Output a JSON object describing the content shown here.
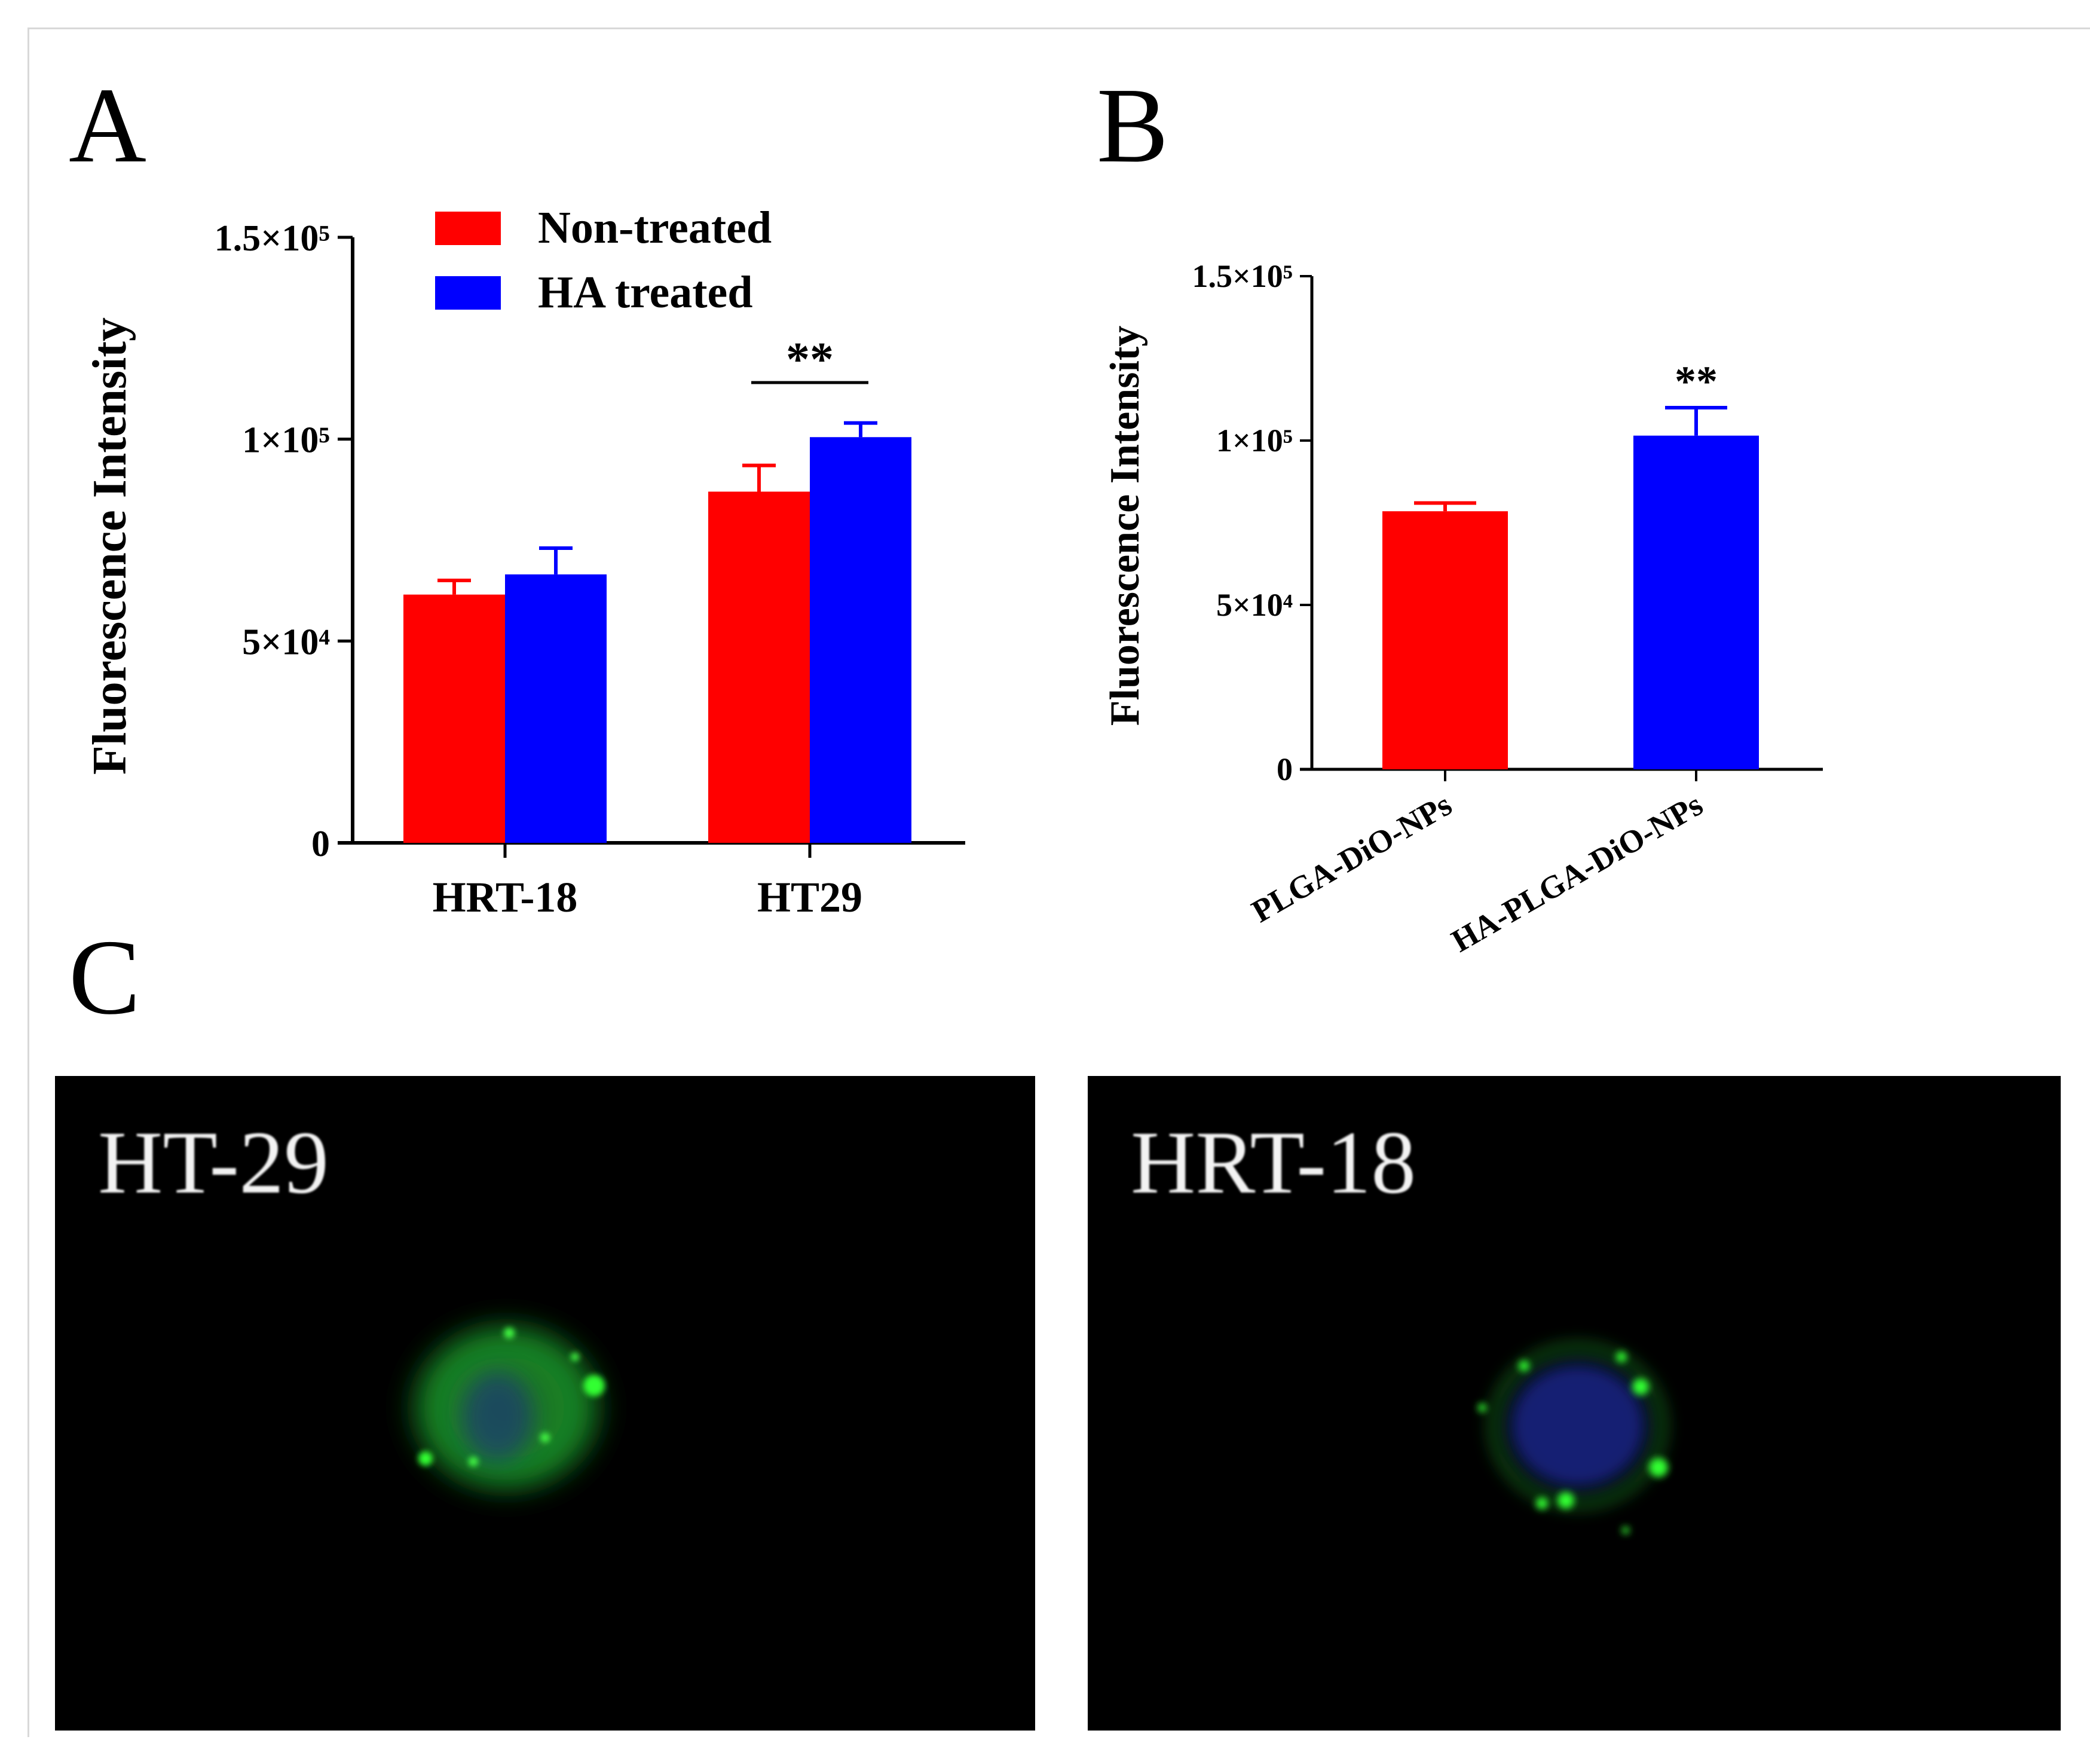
{
  "panel_letters": {
    "a": "A",
    "b": "B",
    "c": "C"
  },
  "chart_data": [
    {
      "type": "bar",
      "panel": "A",
      "categories": [
        "HRT-18",
        "HT29"
      ],
      "series": [
        {
          "name": "Non-treated",
          "color": "#ff0000",
          "values": [
            61500,
            87000
          ],
          "errors": [
            3500,
            6500
          ]
        },
        {
          "name": "HA treated",
          "color": "#0000ff",
          "values": [
            66500,
            100500
          ],
          "errors": [
            6500,
            3500
          ]
        }
      ],
      "ylabel": "Fluorescence Intensity",
      "xlabel": "",
      "ylim": [
        0,
        150000
      ],
      "yticks": [
        {
          "value": 0,
          "label": "0"
        },
        {
          "value": 50000,
          "label": "5×10⁴"
        },
        {
          "value": 100000,
          "label": "1×10⁵"
        },
        {
          "value": 150000,
          "label": "1.5×10⁵"
        }
      ],
      "legend": "top-left",
      "grid": false,
      "annotations": [
        {
          "text": "**",
          "category": "HT29"
        }
      ]
    },
    {
      "type": "bar",
      "panel": "B",
      "categories": [
        "PLGA-DiO-NPs",
        "HA-PLGA-DiO-NPs"
      ],
      "values": [
        78500,
        101500
      ],
      "errors": [
        2500,
        8500
      ],
      "colors": [
        "#ff0000",
        "#0000ff"
      ],
      "ylabel": "Fluorescence Intensity",
      "xlabel": "",
      "ylim": [
        0,
        150000
      ],
      "yticks": [
        {
          "value": 0,
          "label": "0"
        },
        {
          "value": 50000,
          "label": "5×10⁴"
        },
        {
          "value": 100000,
          "label": "1×10⁵"
        },
        {
          "value": 150000,
          "label": "1.5×10⁵"
        }
      ],
      "grid": false,
      "annotations": [
        {
          "text": "**",
          "category": "HA-PLGA-DiO-NPs"
        }
      ]
    }
  ],
  "micrographs": [
    {
      "label": "HT-29",
      "stain_colors": {
        "membrane": "#22dd22",
        "nucleus": "#1a2a9a"
      }
    },
    {
      "label": "HRT-18",
      "stain_colors": {
        "membrane": "#22dd22",
        "nucleus": "#1a2a9a"
      }
    }
  ]
}
